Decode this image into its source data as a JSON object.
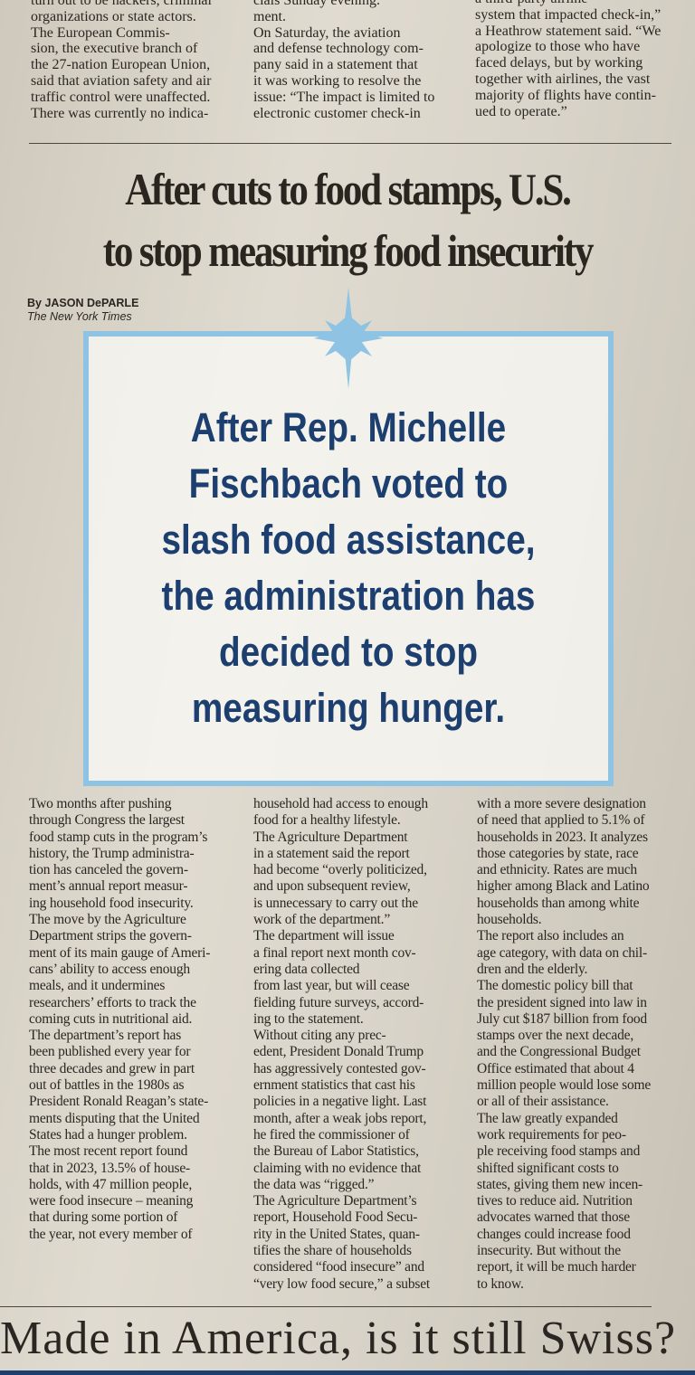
{
  "top_columns": [
    [
      "turn out to be hackers, criminal",
      "organizations or state actors.",
      "The European Commis-",
      "sion, the executive branch of",
      "the 27-nation European Union,",
      "said that aviation safety and air",
      "traffic control were unaffected.",
      "There was currently no indica-"
    ],
    [
      "cials Sunday evening.",
      "ment.",
      "On Saturday, the aviation",
      "and defense technology com-",
      "pany said in a statement that",
      "it was working to resolve the",
      "issue: “The impact is limited to",
      "electronic customer check-in"
    ],
    [
      "a third-party airline",
      "system that impacted check-in,”",
      "a Heathrow statement said. “We",
      "apologize to those who have",
      "faced delays, but by working",
      "together with airlines, the vast",
      "majority of flights have contin-",
      "ued to operate.”"
    ]
  ],
  "headline": {
    "line1": "After cuts to food stamps, U.S.",
    "line2": "to stop measuring food insecurity"
  },
  "byline": {
    "author": "By JASON DePARLE",
    "outlet": "The New York Times"
  },
  "body_columns": [
    [
      "Two months after pushing",
      "through Congress the largest",
      "food stamp cuts in the program’s",
      "history, the Trump administra-",
      "tion has canceled the govern-",
      "ment’s annual report measur-",
      "ing household food insecurity.",
      "The move by the Agriculture",
      "Department strips the govern-",
      "ment of its main gauge of Ameri-",
      "cans’ ability to access enough",
      "meals, and it undermines",
      "researchers’ efforts to track the",
      "coming cuts in nutritional aid.",
      "The department’s report has",
      "been published every year for",
      "three decades and grew in part",
      "out of battles in the 1980s as",
      "President Ronald Reagan’s state-",
      "ments disputing that the United",
      "States had a hunger problem.",
      "The most recent report found",
      "that in 2023, 13.5% of house-",
      "holds, with 47 million people,",
      "were food insecure – meaning",
      "that during some portion of",
      "the year, not every member of"
    ],
    [
      "household had access to enough",
      "food for a healthy lifestyle.",
      "The Agriculture Department",
      "in a statement said the report",
      "had become “overly politicized,",
      "and upon subsequent review,",
      "is unnecessary to carry out the",
      "work of the department.”",
      "The department will issue",
      "a final report next month cov-",
      "ering data collected",
      "from last year, but will cease",
      "fielding future surveys, accord-",
      "ing to the statement.",
      "Without citing any prec-",
      "edent, President Donald Trump",
      "has aggressively contested gov-",
      "ernment statistics that cast his",
      "policies in a negative light. Last",
      "month, after a weak jobs report,",
      "he fired the commissioner of",
      "the Bureau of Labor Statistics,",
      "claiming with no evidence that",
      "the data was “rigged.”",
      "The Agriculture Department’s",
      "report, Household Food Secu-",
      "rity in the United States, quan-",
      "tifies the share of households",
      "considered “food insecure” and",
      "“very low food secure,” a subset"
    ],
    [
      "with a more severe designation",
      "of need that applied to 5.1% of",
      "households in 2023. It analyzes",
      "those categories by state, race",
      "and ethnicity. Rates are much",
      "higher among Black and Latino",
      "households than among white",
      "households.",
      "The report also includes an",
      "age category, with data on chil-",
      "dren and the elderly.",
      "The domestic policy bill that",
      "the president signed into law in",
      "July cut $187 billion from food",
      "stamps over the next decade,",
      "and the Congressional Budget",
      "Office estimated that about 4",
      "million people would lose some",
      "or all of their assistance.",
      "The law greatly expanded",
      "work requirements for peo-",
      "ple receiving food stamps and",
      "shifted significant costs to",
      "states, giving them new incen-",
      "tives to reduce aid. Nutrition",
      "advocates warned that those",
      "changes could increase food",
      "insecurity. But without the",
      "report, it will be much harder",
      "to know."
    ]
  ],
  "overlay": {
    "lines": [
      "After Rep. Michelle",
      "Fischbach voted to",
      "slash food assistance,",
      "the administration has",
      "decided to stop",
      "measuring hunger."
    ],
    "icon": "sparkle-star-icon",
    "text_color": "#1d3f6f",
    "border_color": "#8ec3e3"
  },
  "bottom_headline": "Made in America, is it still Swiss?"
}
